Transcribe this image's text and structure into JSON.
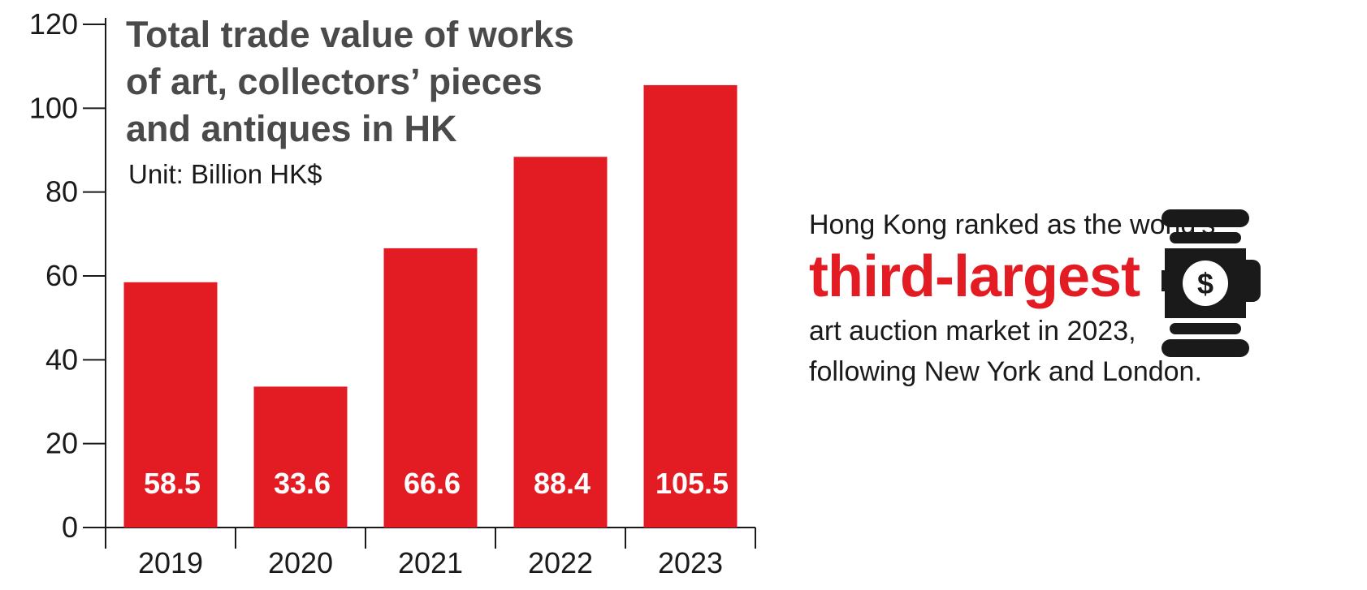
{
  "chart_data": {
    "type": "bar",
    "title_lines": [
      "Total trade value of works",
      "of art, collectors’ pieces",
      "and antiques in HK"
    ],
    "subtitle": "Unit: Billion HK$",
    "categories": [
      "2019",
      "2020",
      "2021",
      "2022",
      "2023"
    ],
    "values": [
      58.5,
      33.6,
      66.6,
      88.4,
      105.5
    ],
    "value_labels": [
      "58.5",
      "33.6",
      "66.6",
      "88.4",
      "105.5"
    ],
    "ylim": [
      0,
      120
    ],
    "yticks": [
      0,
      20,
      40,
      60,
      80,
      100,
      120
    ],
    "grid": false,
    "colors": {
      "bar": "#e31b23",
      "axis": "#1a1a1a",
      "title": "#4a4a4a"
    }
  },
  "callout": {
    "lead": "Hong Kong ranked as the world’s",
    "highlight": "third-largest",
    "tail_line1": "art auction market in 2023,",
    "tail_line2": "following New York and London.",
    "icon": "auction-gavel-icon",
    "highlight_color": "#e31b23"
  }
}
